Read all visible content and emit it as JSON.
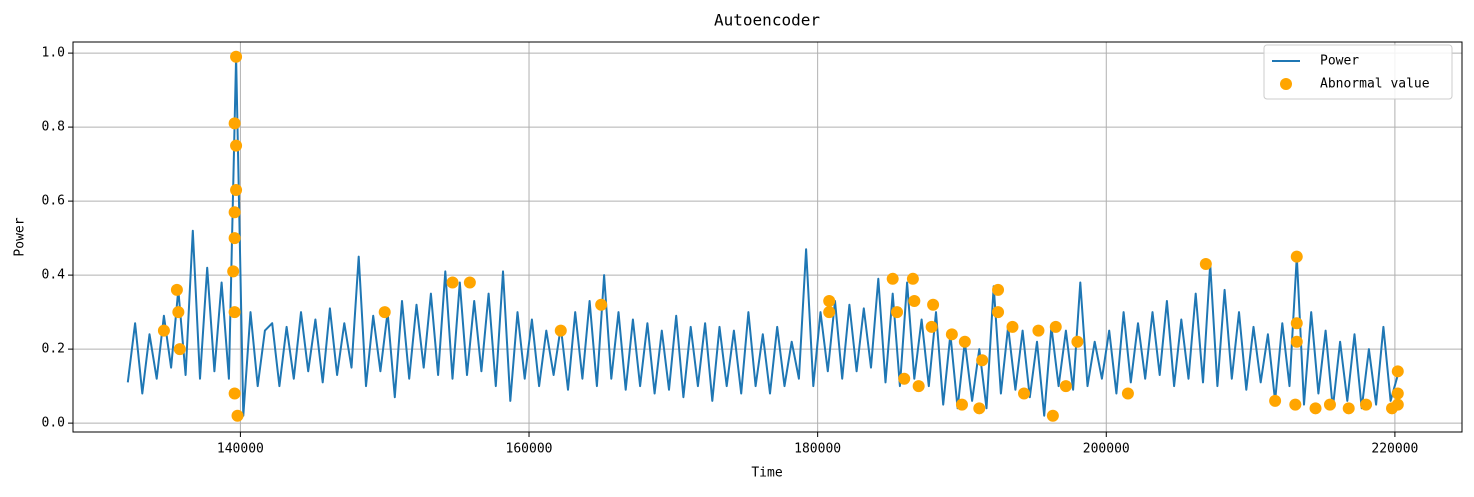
{
  "chart_data": {
    "type": "line",
    "title": "Autoencoder",
    "x_label": "Time",
    "y_label": "Power",
    "xlim": [
      128400,
      224650
    ],
    "ylim": [
      -0.024,
      1.03
    ],
    "xticks": [
      140000,
      160000,
      180000,
      200000,
      220000
    ],
    "yticks": [
      {
        "value": 0,
        "label": "0.0"
      },
      0.2,
      0.4,
      0.6,
      0.8,
      {
        "value": 1,
        "label": "1.0"
      }
    ],
    "grid": true,
    "legend": "upper right",
    "series": [
      {
        "name": "Power",
        "type": "line",
        "color": "#1f77b4",
        "x": [
          132200,
          132700,
          133200,
          133700,
          134200,
          134700,
          135200,
          135700,
          136200,
          136700,
          137200,
          137700,
          138200,
          138700,
          139200,
          139700,
          140200,
          140700,
          141200,
          141700,
          142200,
          142700,
          143200,
          143700,
          144200,
          144700,
          145200,
          145700,
          146200,
          146700,
          147200,
          147700,
          148200,
          148700,
          149200,
          149700,
          150200,
          150700,
          151200,
          151700,
          152200,
          152700,
          153200,
          153700,
          154200,
          154700,
          155200,
          155700,
          156200,
          156700,
          157200,
          157700,
          158200,
          158700,
          159200,
          159700,
          160200,
          160700,
          161200,
          161700,
          162200,
          162700,
          163200,
          163700,
          164200,
          164700,
          165200,
          165700,
          166200,
          166700,
          167200,
          167700,
          168200,
          168700,
          169200,
          169700,
          170200,
          170700,
          171200,
          171700,
          172200,
          172700,
          173200,
          173700,
          174200,
          174700,
          175200,
          175700,
          176200,
          176700,
          177200,
          177700,
          178200,
          178700,
          179200,
          179700,
          180200,
          180700,
          181200,
          181700,
          182200,
          182700,
          183200,
          183700,
          184200,
          184700,
          185200,
          185700,
          186200,
          186700,
          187200,
          187700,
          188200,
          188700,
          189200,
          189700,
          190200,
          190700,
          191200,
          191700,
          192200,
          192700,
          193200,
          193700,
          194200,
          194700,
          195200,
          195700,
          196200,
          196700,
          197200,
          197700,
          198200,
          198700,
          199200,
          199700,
          200200,
          200700,
          201200,
          201700,
          202200,
          202700,
          203200,
          203700,
          204200,
          204700,
          205200,
          205700,
          206200,
          206700,
          207200,
          207700,
          208200,
          208700,
          209200,
          209700,
          210200,
          210700,
          211200,
          211700,
          212200,
          212700,
          213200,
          213700,
          214200,
          214700,
          215200,
          215700,
          216200,
          216700,
          217200,
          217700,
          218200,
          218700,
          219200,
          219700,
          220200
        ],
        "values": [
          0.11,
          0.27,
          0.08,
          0.24,
          0.12,
          0.29,
          0.15,
          0.36,
          0.13,
          0.52,
          0.12,
          0.42,
          0.14,
          0.38,
          0.12,
          0.99,
          0.02,
          0.3,
          0.1,
          0.25,
          0.27,
          0.1,
          0.26,
          0.12,
          0.3,
          0.14,
          0.28,
          0.11,
          0.31,
          0.13,
          0.27,
          0.15,
          0.45,
          0.1,
          0.29,
          0.14,
          0.3,
          0.07,
          0.33,
          0.12,
          0.32,
          0.15,
          0.35,
          0.13,
          0.41,
          0.12,
          0.38,
          0.13,
          0.33,
          0.14,
          0.35,
          0.1,
          0.41,
          0.06,
          0.3,
          0.12,
          0.28,
          0.1,
          0.25,
          0.13,
          0.26,
          0.09,
          0.3,
          0.12,
          0.33,
          0.1,
          0.4,
          0.12,
          0.3,
          0.09,
          0.28,
          0.1,
          0.27,
          0.08,
          0.25,
          0.09,
          0.29,
          0.07,
          0.26,
          0.1,
          0.27,
          0.06,
          0.26,
          0.1,
          0.25,
          0.08,
          0.3,
          0.1,
          0.24,
          0.08,
          0.26,
          0.1,
          0.22,
          0.12,
          0.47,
          0.1,
          0.3,
          0.14,
          0.33,
          0.12,
          0.32,
          0.14,
          0.31,
          0.15,
          0.39,
          0.11,
          0.35,
          0.1,
          0.38,
          0.12,
          0.28,
          0.1,
          0.3,
          0.05,
          0.24,
          0.04,
          0.22,
          0.06,
          0.2,
          0.04,
          0.37,
          0.08,
          0.26,
          0.09,
          0.25,
          0.07,
          0.22,
          0.02,
          0.26,
          0.1,
          0.25,
          0.09,
          0.38,
          0.1,
          0.22,
          0.12,
          0.25,
          0.08,
          0.3,
          0.11,
          0.27,
          0.12,
          0.3,
          0.13,
          0.33,
          0.1,
          0.28,
          0.12,
          0.35,
          0.11,
          0.43,
          0.1,
          0.36,
          0.12,
          0.3,
          0.09,
          0.26,
          0.11,
          0.24,
          0.06,
          0.27,
          0.1,
          0.45,
          0.05,
          0.3,
          0.08,
          0.25,
          0.04,
          0.22,
          0.06,
          0.24,
          0.04,
          0.2,
          0.05,
          0.26,
          0.06,
          0.13
        ]
      },
      {
        "name": "Abnormal value",
        "type": "scatter",
        "color": "#ffa500",
        "x": [
          134700,
          135600,
          135700,
          135800,
          139600,
          139700,
          139700,
          139700,
          139600,
          139600,
          139500,
          139600,
          139600,
          139800,
          150000,
          154700,
          155900,
          162200,
          165000,
          180800,
          180800,
          185200,
          185500,
          186000,
          186600,
          186700,
          187000,
          188000,
          187900,
          189300,
          190000,
          190200,
          191200,
          191400,
          192500,
          192500,
          193500,
          194300,
          195300,
          196300,
          196500,
          197200,
          198000,
          201500,
          206900,
          211700,
          213200,
          213200,
          213200,
          213100,
          214500,
          215500,
          216800,
          218000,
          219800,
          220200,
          220200,
          220200
        ],
        "values": [
          0.25,
          0.36,
          0.3,
          0.2,
          0.81,
          0.99,
          0.75,
          0.63,
          0.57,
          0.5,
          0.41,
          0.3,
          0.08,
          0.02,
          0.3,
          0.38,
          0.38,
          0.25,
          0.32,
          0.33,
          0.3,
          0.39,
          0.3,
          0.12,
          0.39,
          0.33,
          0.1,
          0.32,
          0.26,
          0.24,
          0.05,
          0.22,
          0.04,
          0.17,
          0.36,
          0.3,
          0.26,
          0.08,
          0.25,
          0.02,
          0.26,
          0.1,
          0.22,
          0.08,
          0.43,
          0.06,
          0.45,
          0.27,
          0.22,
          0.05,
          0.04,
          0.05,
          0.04,
          0.05,
          0.04,
          0.14,
          0.08,
          0.05
        ]
      }
    ]
  }
}
